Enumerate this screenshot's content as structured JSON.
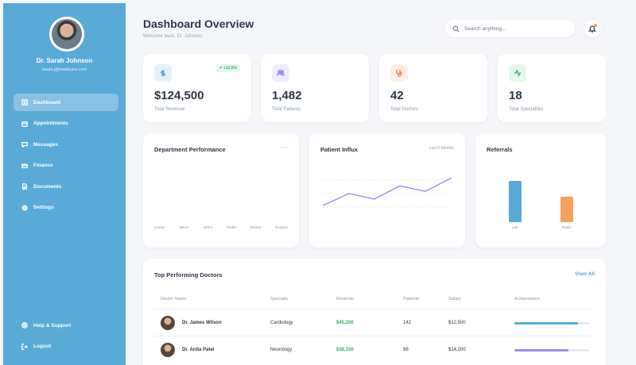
{
  "user": {
    "name": "Dr. Sarah Johnson",
    "email": "sarah.j@medicare.com"
  },
  "nav": [
    {
      "label": "Dashboard",
      "icon": "dashboard-icon",
      "active": true
    },
    {
      "label": "Appointments",
      "icon": "calendar-icon"
    },
    {
      "label": "Messages",
      "icon": "message-icon"
    },
    {
      "label": "Finance",
      "icon": "finance-icon"
    },
    {
      "label": "Documents",
      "icon": "document-icon"
    },
    {
      "label": "Settings",
      "icon": "gear-icon"
    }
  ],
  "nav_bottom": [
    {
      "label": "Help & Support",
      "icon": "help-icon"
    },
    {
      "label": "Logout",
      "icon": "logout-icon"
    }
  ],
  "header": {
    "title": "Dashboard Overview",
    "subtitle": "Welcome back, Dr. Johnson",
    "search_placeholder": "Search anything..."
  },
  "stats": [
    {
      "value": "$124,500",
      "label": "Total Revenue",
      "trend": "+12.5%",
      "color": "#5aaad8",
      "bg": "#e4f1fa",
      "icon": "dollar-icon"
    },
    {
      "value": "1,482",
      "label": "Total Patients",
      "color": "#8a7ff0",
      "bg": "#efedfd",
      "icon": "users-icon"
    },
    {
      "value": "42",
      "label": "Total Doctors",
      "color": "#f28a5c",
      "bg": "#fdeee6",
      "icon": "stethoscope-icon"
    },
    {
      "value": "18",
      "label": "Total Specialties",
      "color": "#3cbf74",
      "bg": "#e4f7ec",
      "icon": "activity-icon"
    }
  ],
  "dept": {
    "title": "Department Performance",
    "more": "···",
    "labels": [
      "Cardio",
      "Neuro",
      "Ortho",
      "Pedia",
      "Dental",
      "Surgery"
    ]
  },
  "influx": {
    "title": "Patient Influx",
    "period": "Last 6 Months"
  },
  "referrals": {
    "title": "Referrals"
  },
  "chart_data": [
    {
      "type": "line",
      "title": "Patient Influx",
      "x": [
        "1",
        "2",
        "3",
        "4",
        "5",
        "6"
      ],
      "series": [
        {
          "values": [
            20,
            35,
            28,
            45,
            38,
            55
          ],
          "color": "#9b8cf0"
        }
      ],
      "ylim": [
        0,
        70
      ],
      "grid": true
    },
    {
      "type": "bar",
      "title": "Referrals",
      "categories": [
        "Lab",
        "Radio"
      ],
      "values": [
        100,
        62
      ],
      "colors": [
        "#5aaad8",
        "#f8a15e"
      ],
      "ylim": [
        0,
        100
      ]
    }
  ],
  "table": {
    "title": "Top Performing Doctors",
    "view_all": "View All",
    "headers": [
      "Doctor Name",
      "Specialty",
      "Revenue",
      "Patients",
      "Salary",
      "Achievement"
    ],
    "rows": [
      {
        "name": "Dr. James Wilson",
        "specialty": "Cardiology",
        "revenue": "$45,200",
        "patients": "142",
        "salary": "$12,500",
        "achievement": 0.85,
        "color": "#5aaad8"
      },
      {
        "name": "Dr. Anita Patel",
        "specialty": "Neurology",
        "revenue": "$38,150",
        "patients": "98",
        "salary": "$14,200",
        "achievement": 0.72,
        "color": "#9b8cf0"
      }
    ]
  }
}
